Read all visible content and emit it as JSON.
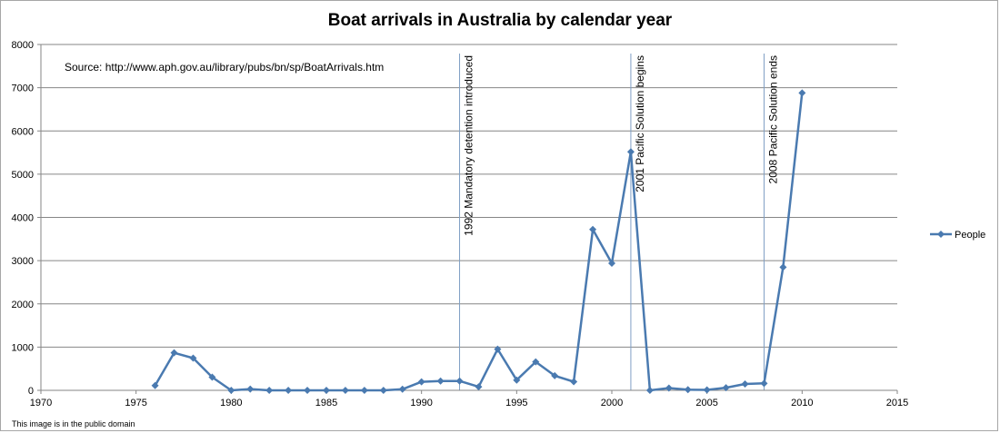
{
  "chart_data": {
    "type": "line",
    "title": "Boat arrivals in Australia by calendar year",
    "source_note": "Source: http://www.aph.gov.au/library/pubs/bn/sp/BoatArrivals.htm",
    "footer_note": "This image is in the public domain",
    "xlim": [
      1970,
      2015
    ],
    "ylim": [
      0,
      8000
    ],
    "x_ticks": [
      1970,
      1975,
      1980,
      1985,
      1990,
      1995,
      2000,
      2005,
      2010,
      2015
    ],
    "y_ticks": [
      0,
      1000,
      2000,
      3000,
      4000,
      5000,
      6000,
      7000,
      8000
    ],
    "grid": "horizontal",
    "legend_position": "right",
    "series": [
      {
        "name": "People",
        "color": "#4a7ab0",
        "marker": "diamond",
        "x": [
          1976,
          1977,
          1978,
          1979,
          1980,
          1981,
          1982,
          1983,
          1984,
          1985,
          1986,
          1987,
          1988,
          1989,
          1990,
          1991,
          1992,
          1993,
          1994,
          1995,
          1996,
          1997,
          1998,
          1999,
          2000,
          2001,
          2002,
          2003,
          2004,
          2005,
          2006,
          2007,
          2008,
          2009,
          2010
        ],
        "y": [
          111,
          868,
          746,
          305,
          0,
          30,
          0,
          0,
          0,
          0,
          0,
          0,
          0,
          26,
          198,
          214,
          216,
          81,
          953,
          237,
          660,
          339,
          200,
          3721,
          2939,
          5516,
          1,
          53,
          15,
          11,
          60,
          148,
          161,
          2849,
          6879
        ]
      }
    ],
    "annotations": [
      {
        "x": 1992,
        "label": "1992 Mandatory detention introduced"
      },
      {
        "x": 2001,
        "label": "2001 Pacific Solution begins"
      },
      {
        "x": 2008,
        "label": "2008 Pacific Solution ends"
      }
    ]
  }
}
